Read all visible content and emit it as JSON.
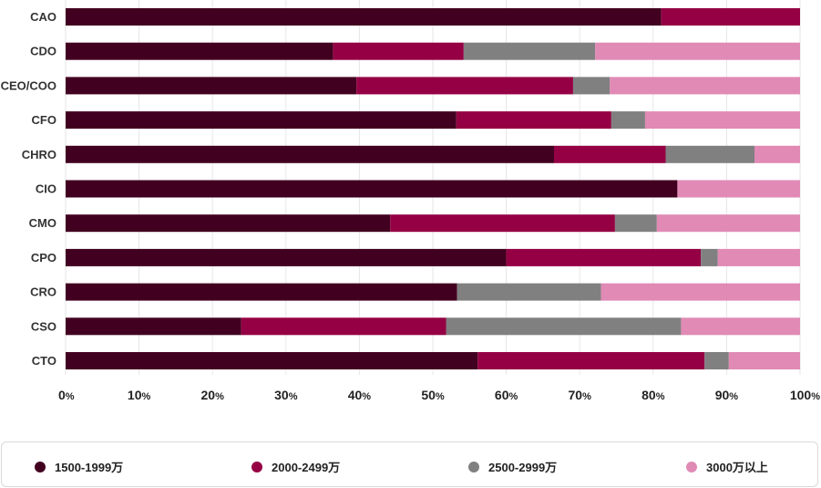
{
  "chart_data": {
    "type": "bar",
    "orientation": "horizontal",
    "stacked": true,
    "percent": true,
    "categories": [
      "CAO",
      "CDO",
      "CEO/COO",
      "CFO",
      "CHRO",
      "CIO",
      "CMO",
      "CPO",
      "CRO",
      "CSO",
      "CTO"
    ],
    "series": [
      {
        "name": "1500-1999万",
        "color": "#420020",
        "values": [
          81.1,
          36.4,
          39.6,
          53.2,
          66.5,
          83.3,
          44.2,
          60.0,
          53.3,
          23.9,
          56.1
        ]
      },
      {
        "name": "2000-2499万",
        "color": "#950044",
        "values": [
          18.9,
          17.8,
          29.5,
          21.1,
          15.2,
          0,
          30.6,
          26.5,
          0,
          27.9,
          30.9
        ]
      },
      {
        "name": "2500-2999万",
        "color": "#808080",
        "values": [
          0,
          17.9,
          5.0,
          4.6,
          12.1,
          0,
          5.7,
          2.3,
          19.6,
          32.0,
          3.3
        ]
      },
      {
        "name": "3000万以上",
        "color": "#e08ab5",
        "values": [
          0,
          27.9,
          25.9,
          21.1,
          6.2,
          16.7,
          19.5,
          11.2,
          27.1,
          16.2,
          9.7
        ]
      }
    ],
    "xlim": [
      0,
      100
    ],
    "x_ticks": [
      0,
      10,
      20,
      30,
      40,
      50,
      60,
      70,
      80,
      90,
      100
    ],
    "x_tick_suffix": "%",
    "grid": true,
    "legend_position": "bottom",
    "title": "",
    "xlabel": "",
    "ylabel": ""
  },
  "legend": {
    "items": [
      {
        "label": "1500-1999万"
      },
      {
        "label": "2000-2499万"
      },
      {
        "label": "2500-2999万"
      },
      {
        "label": "3000万以上"
      }
    ]
  }
}
